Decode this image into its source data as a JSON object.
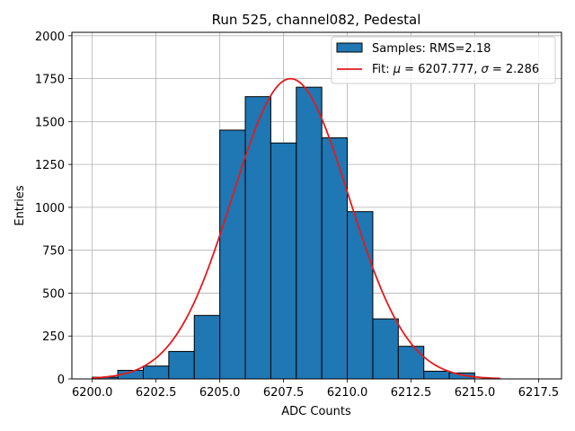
{
  "chart_data": {
    "type": "bar",
    "title": "Run 525, channel082, Pedestal",
    "xlabel": "ADC Counts",
    "ylabel": "Entries",
    "xlim": [
      6199.2,
      6218.4
    ],
    "ylim": [
      0,
      2020
    ],
    "xticks": [
      6200.0,
      6202.5,
      6205.0,
      6207.5,
      6210.0,
      6212.5,
      6215.0,
      6217.5
    ],
    "xtick_labels": [
      "6200.0",
      "6202.5",
      "6205.0",
      "6207.5",
      "6210.0",
      "6212.5",
      "6215.0",
      "6217.5"
    ],
    "yticks": [
      0,
      250,
      500,
      750,
      1000,
      1250,
      1500,
      1750,
      2000
    ],
    "ytick_labels": [
      "0",
      "250",
      "500",
      "750",
      "1000",
      "1250",
      "1500",
      "1750",
      "2000"
    ],
    "grid": true,
    "bins": {
      "edges": [
        6200,
        6201,
        6202,
        6203,
        6204,
        6205,
        6206,
        6207,
        6208,
        6209,
        6210,
        6211,
        6212,
        6213,
        6214,
        6215,
        6216
      ],
      "values": [
        10,
        50,
        75,
        160,
        370,
        1450,
        1645,
        1375,
        1700,
        1405,
        975,
        350,
        190,
        45,
        35,
        0
      ],
      "color": "#1f77b4",
      "edgecolor": "#000000"
    },
    "fit": {
      "mu": 6207.777,
      "sigma": 2.286,
      "amplitude": 1750,
      "x_range": [
        6200,
        6216
      ],
      "color": "#e41a1c"
    },
    "legend": {
      "position": "top-right",
      "entries": [
        {
          "label": "Samples: RMS=2.18"
        },
        {
          "label_prefix": "Fit: ",
          "mu_symbol": "μ",
          "mu_text": " = 6207.777, ",
          "sigma_symbol": "σ",
          "sigma_text": " = 2.286"
        }
      ]
    }
  }
}
